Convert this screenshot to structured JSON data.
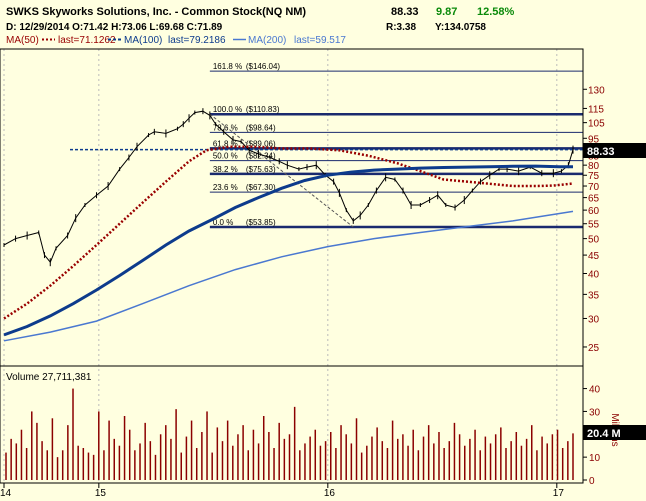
{
  "header": {
    "title": "SWKS Skyworks Solutions, Inc. - Common Stock(NQ NM)",
    "last": "88.33",
    "change": "9.87",
    "change_pct": "12.58%",
    "line2_left": "D: 12/29/2014  O:71.42  H:73.06  L:69.68  C:71.89",
    "line2_r": "R:3.38",
    "line2_y": "Y:134.0758",
    "ma50_label": "MA(50)",
    "ma50_last": "last=71.1262",
    "ma100_label": "MA(100)",
    "ma100_last": "last=79.2186",
    "ma200_label": "MA(200)",
    "ma200_last": "last=59.517"
  },
  "colors": {
    "background": "#ffffe0",
    "price_bars": "#000000",
    "ma50": "#990000",
    "ma100": "#0d3b8c",
    "ma200": "#4a78d0",
    "fib_lines": "#1a2a6e",
    "volume_bars": "#8b0000",
    "axis_right_text": "#8b0000"
  },
  "chart_data": {
    "type": "line",
    "title": "SWKS Skyworks Solutions, Inc. - Common Stock(NQ NM)",
    "y_scale": "log",
    "ylim": [
      23,
      165
    ],
    "y_ticks": [
      25,
      30,
      35,
      40,
      45,
      50,
      55,
      60,
      65,
      70,
      75,
      80,
      85,
      95,
      105,
      115,
      130
    ],
    "x_ticks": [
      {
        "label": "14",
        "t": 0
      },
      {
        "label": "15",
        "t": 82
      },
      {
        "label": "16",
        "t": 280
      },
      {
        "label": "17",
        "t": 478
      }
    ],
    "x_range": [
      0,
      492
    ],
    "last_price": 88.33,
    "last_price_label": "88.33",
    "fibonacci": [
      {
        "label": "161.8 %",
        "value_label": "($146.04)",
        "value": 146.04
      },
      {
        "label": "100.0 %",
        "value_label": "($110.83)",
        "value": 110.83
      },
      {
        "label": "78.6 %",
        "value_label": "($98.64)",
        "value": 98.64
      },
      {
        "label": "61.8 %",
        "value_label": "($89.06)",
        "value": 89.06
      },
      {
        "label": "50.0 %",
        "value_label": "($82.34)",
        "value": 82.34
      },
      {
        "label": "38.2 %",
        "value_label": "($75.63)",
        "value": 75.63
      },
      {
        "label": "23.6 %",
        "value_label": "($67.30)",
        "value": 67.3
      },
      {
        "label": "0.0 %",
        "value_label": "($53.85)",
        "value": 53.85
      }
    ],
    "series": [
      {
        "name": "SWKS",
        "points": [
          [
            0,
            48
          ],
          [
            10,
            50
          ],
          [
            20,
            51
          ],
          [
            30,
            52
          ],
          [
            35,
            45
          ],
          [
            40,
            43
          ],
          [
            45,
            47
          ],
          [
            55,
            51
          ],
          [
            62,
            57
          ],
          [
            70,
            62
          ],
          [
            80,
            66
          ],
          [
            90,
            70
          ],
          [
            100,
            78
          ],
          [
            108,
            84
          ],
          [
            115,
            90
          ],
          [
            125,
            97
          ],
          [
            130,
            99
          ],
          [
            140,
            98
          ],
          [
            150,
            101
          ],
          [
            155,
            104
          ],
          [
            160,
            108
          ],
          [
            165,
            112
          ],
          [
            172,
            113
          ],
          [
            178,
            110
          ],
          [
            183,
            104
          ],
          [
            190,
            99
          ],
          [
            198,
            94
          ],
          [
            205,
            93
          ],
          [
            212,
            88
          ],
          [
            220,
            86
          ],
          [
            230,
            84
          ],
          [
            238,
            82
          ],
          [
            245,
            80
          ],
          [
            255,
            78
          ],
          [
            262,
            79
          ],
          [
            270,
            80
          ],
          [
            278,
            75
          ],
          [
            285,
            72
          ],
          [
            290,
            67
          ],
          [
            296,
            60
          ],
          [
            302,
            56
          ],
          [
            308,
            58
          ],
          [
            315,
            62
          ],
          [
            322,
            68
          ],
          [
            330,
            74
          ],
          [
            338,
            73
          ],
          [
            345,
            68
          ],
          [
            352,
            62
          ],
          [
            360,
            62
          ],
          [
            368,
            64
          ],
          [
            375,
            66
          ],
          [
            382,
            62
          ],
          [
            390,
            61
          ],
          [
            398,
            64
          ],
          [
            405,
            68
          ],
          [
            412,
            72
          ],
          [
            420,
            75
          ],
          [
            428,
            78
          ],
          [
            435,
            78
          ],
          [
            445,
            77
          ],
          [
            455,
            79
          ],
          [
            465,
            76
          ],
          [
            475,
            76
          ],
          [
            482,
            77
          ],
          [
            488,
            80
          ],
          [
            492,
            88.33
          ]
        ]
      },
      {
        "name": "MA(50)",
        "points": [
          [
            0,
            30
          ],
          [
            20,
            33
          ],
          [
            40,
            37
          ],
          [
            60,
            42
          ],
          [
            80,
            48
          ],
          [
            100,
            55
          ],
          [
            120,
            63
          ],
          [
            140,
            72
          ],
          [
            160,
            82
          ],
          [
            175,
            88
          ],
          [
            195,
            90
          ],
          [
            215,
            90
          ],
          [
            240,
            89
          ],
          [
            265,
            89
          ],
          [
            290,
            88
          ],
          [
            315,
            85
          ],
          [
            340,
            81
          ],
          [
            360,
            77
          ],
          [
            380,
            73
          ],
          [
            400,
            72
          ],
          [
            420,
            71
          ],
          [
            440,
            70
          ],
          [
            460,
            70
          ],
          [
            475,
            70.2
          ],
          [
            492,
            71.13
          ]
        ]
      },
      {
        "name": "MA(100)",
        "points": [
          [
            0,
            27
          ],
          [
            20,
            28.5
          ],
          [
            40,
            30.5
          ],
          [
            60,
            33
          ],
          [
            80,
            36
          ],
          [
            100,
            39.5
          ],
          [
            120,
            43.5
          ],
          [
            140,
            48
          ],
          [
            160,
            52.5
          ],
          [
            180,
            56.5
          ],
          [
            200,
            61
          ],
          [
            220,
            65
          ],
          [
            240,
            69
          ],
          [
            260,
            72.5
          ],
          [
            280,
            75
          ],
          [
            300,
            76.5
          ],
          [
            320,
            77.5
          ],
          [
            340,
            78
          ],
          [
            360,
            78.5
          ],
          [
            380,
            78.8
          ],
          [
            400,
            79
          ],
          [
            420,
            79.2
          ],
          [
            440,
            79.4
          ],
          [
            460,
            79.5
          ],
          [
            480,
            79.2
          ],
          [
            492,
            79.22
          ]
        ]
      },
      {
        "name": "MA(200)",
        "points": [
          [
            0,
            26
          ],
          [
            40,
            27.5
          ],
          [
            80,
            29.5
          ],
          [
            120,
            33
          ],
          [
            160,
            37
          ],
          [
            200,
            41
          ],
          [
            240,
            44.5
          ],
          [
            280,
            47.5
          ],
          [
            320,
            50
          ],
          [
            360,
            52
          ],
          [
            400,
            54
          ],
          [
            440,
            56
          ],
          [
            470,
            58
          ],
          [
            492,
            59.52
          ]
        ]
      }
    ]
  },
  "volume": {
    "label": "Volume 27,711,381",
    "last_label": "20.4 M",
    "last_value": 20.4,
    "axis_label": "Millions",
    "ylim": [
      0,
      42
    ],
    "y_ticks": [
      0,
      10,
      20,
      30,
      40
    ],
    "values": [
      12,
      18,
      16,
      22,
      14,
      30,
      25,
      17,
      13,
      27,
      10,
      13,
      24,
      40,
      15,
      14,
      12,
      11,
      30,
      13,
      26,
      18,
      15,
      28,
      22,
      13,
      16,
      25,
      17,
      11,
      20,
      24,
      18,
      31,
      12,
      19,
      26,
      14,
      21,
      30,
      12,
      23,
      17,
      26,
      15,
      20,
      24,
      13,
      22,
      16,
      28,
      21,
      14,
      25,
      18,
      20,
      32,
      13,
      16,
      19,
      22,
      15,
      17,
      21,
      14,
      24,
      20,
      16,
      27,
      12,
      15,
      19,
      23,
      17,
      14,
      26,
      18,
      20,
      15,
      22,
      13,
      19,
      24,
      16,
      21,
      14,
      17,
      25,
      20,
      15,
      18,
      22,
      13,
      19,
      16,
      20,
      23,
      14,
      17,
      21,
      15,
      18,
      24,
      13,
      19,
      16,
      20,
      22,
      14,
      17,
      20.4
    ]
  }
}
